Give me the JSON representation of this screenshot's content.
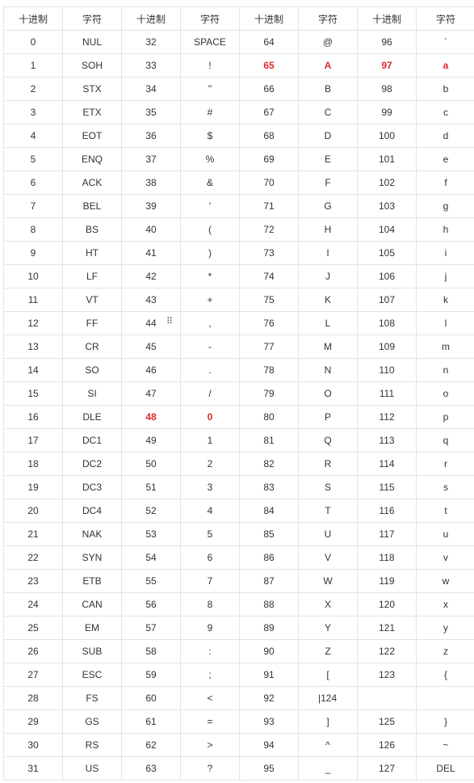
{
  "headers": [
    "十进制",
    "字符",
    "十进制",
    "字符",
    "十进制",
    "字符",
    "十进制",
    "字符"
  ],
  "highlight_color": "#e0262b",
  "drag_handle_icon": "drag-handle-icon",
  "rows": [
    [
      "0",
      "NUL",
      "32",
      "SPACE",
      "64",
      "@",
      "96",
      "`"
    ],
    [
      "1",
      "SOH",
      "33",
      "!",
      "65",
      "A",
      "97",
      "a"
    ],
    [
      "2",
      "STX",
      "34",
      "\"",
      "66",
      "B",
      "98",
      "b"
    ],
    [
      "3",
      "ETX",
      "35",
      "#",
      "67",
      "C",
      "99",
      "c"
    ],
    [
      "4",
      "EOT",
      "36",
      "$",
      "68",
      "D",
      "100",
      "d"
    ],
    [
      "5",
      "ENQ",
      "37",
      "%",
      "69",
      "E",
      "101",
      "e"
    ],
    [
      "6",
      "ACK",
      "38",
      "&",
      "70",
      "F",
      "102",
      "f"
    ],
    [
      "7",
      "BEL",
      "39",
      "'",
      "71",
      "G",
      "103",
      "g"
    ],
    [
      "8",
      "BS",
      "40",
      "(",
      "72",
      "H",
      "104",
      "h"
    ],
    [
      "9",
      "HT",
      "41",
      ")",
      "73",
      "I",
      "105",
      "i"
    ],
    [
      "10",
      "LF",
      "42",
      "*",
      "74",
      "J",
      "106",
      "j"
    ],
    [
      "11",
      "VT",
      "43",
      "+",
      "75",
      "K",
      "107",
      "k"
    ],
    [
      "12",
      "FF",
      "44",
      ",",
      "76",
      "L",
      "108",
      "l"
    ],
    [
      "13",
      "CR",
      "45",
      "-",
      "77",
      "M",
      "109",
      "m"
    ],
    [
      "14",
      "SO",
      "46",
      ".",
      "78",
      "N",
      "110",
      "n"
    ],
    [
      "15",
      "SI",
      "47",
      "/",
      "79",
      "O",
      "111",
      "o"
    ],
    [
      "16",
      "DLE",
      "48",
      "0",
      "80",
      "P",
      "112",
      "p"
    ],
    [
      "17",
      "DC1",
      "49",
      "1",
      "81",
      "Q",
      "113",
      "q"
    ],
    [
      "18",
      "DC2",
      "50",
      "2",
      "82",
      "R",
      "114",
      "r"
    ],
    [
      "19",
      "DC3",
      "51",
      "3",
      "83",
      "S",
      "115",
      "s"
    ],
    [
      "20",
      "DC4",
      "52",
      "4",
      "84",
      "T",
      "116",
      "t"
    ],
    [
      "21",
      "NAK",
      "53",
      "5",
      "85",
      "U",
      "117",
      "u"
    ],
    [
      "22",
      "SYN",
      "54",
      "6",
      "86",
      "V",
      "118",
      "v"
    ],
    [
      "23",
      "ETB",
      "55",
      "7",
      "87",
      "W",
      "119",
      "w"
    ],
    [
      "24",
      "CAN",
      "56",
      "8",
      "88",
      "X",
      "120",
      "x"
    ],
    [
      "25",
      "EM",
      "57",
      "9",
      "89",
      "Y",
      "121",
      "y"
    ],
    [
      "26",
      "SUB",
      "58",
      ":",
      "90",
      "Z",
      "122",
      "z"
    ],
    [
      "27",
      "ESC",
      "59",
      ";",
      "91",
      "[",
      "123",
      "{"
    ],
    [
      "28",
      "FS",
      "60",
      "<",
      "92",
      "|124",
      "",
      ""
    ],
    [
      "29",
      "GS",
      "61",
      "=",
      "93",
      "]",
      "125",
      "}"
    ],
    [
      "30",
      "RS",
      "62",
      ">",
      "94",
      "^",
      "126",
      "~"
    ],
    [
      "31",
      "US",
      "63",
      "?",
      "95",
      "_",
      "127",
      "DEL"
    ]
  ],
  "highlighted_cells": [
    {
      "row": 1,
      "col": 4
    },
    {
      "row": 1,
      "col": 5
    },
    {
      "row": 1,
      "col": 6
    },
    {
      "row": 1,
      "col": 7
    },
    {
      "row": 16,
      "col": 2
    },
    {
      "row": 16,
      "col": 3
    }
  ],
  "left_aligned_cells": [
    {
      "row": 28,
      "col": 5
    }
  ]
}
